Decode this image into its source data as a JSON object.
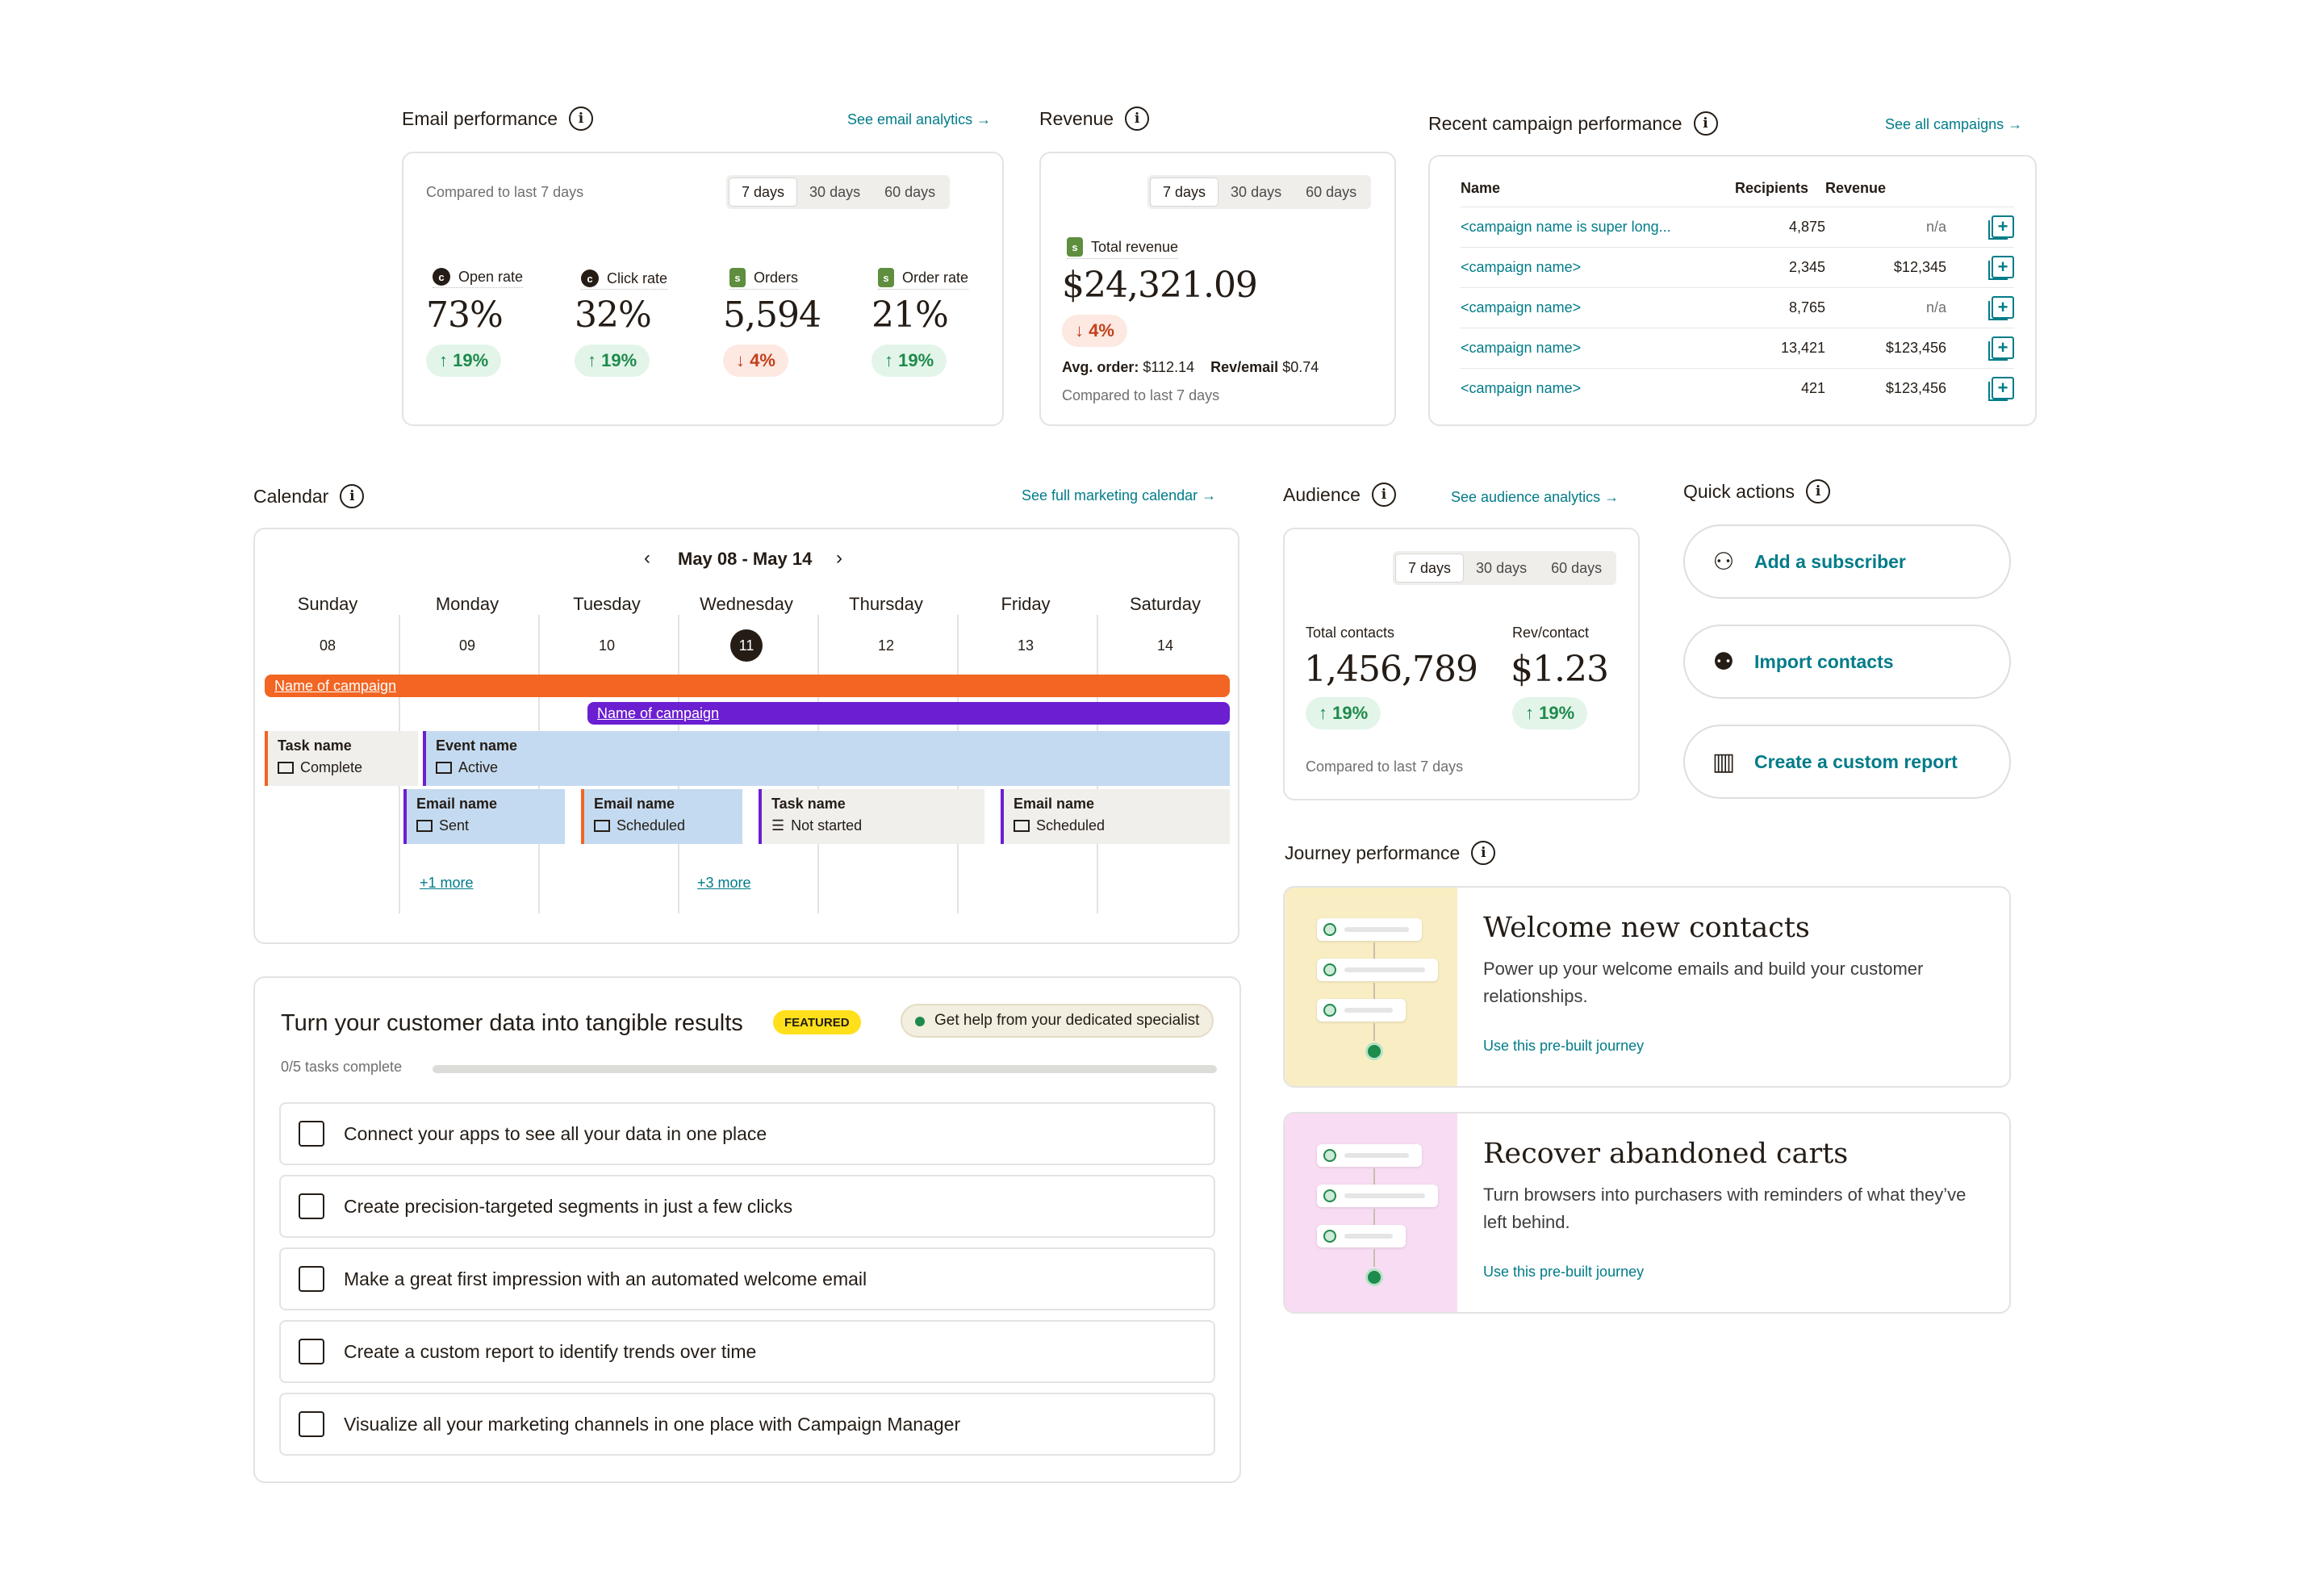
{
  "email": {
    "title": "Email performance",
    "link": "See email analytics →",
    "compared": "Compared to last 7 days",
    "ranges": [
      "7 days",
      "30 days",
      "60 days"
    ],
    "metrics": [
      {
        "label": "Open rate",
        "value": "73%",
        "change": "↑ 19%"
      },
      {
        "label": "Click rate",
        "value": "32%",
        "change": "↑ 19%"
      },
      {
        "label": "Orders",
        "value": "5,594",
        "change": "↓ 4%"
      },
      {
        "label": "Order rate",
        "value": "21%",
        "change": "↑ 19%"
      }
    ]
  },
  "revenue": {
    "title": "Revenue",
    "ranges": [
      "7 days",
      "30 days",
      "60 days"
    ],
    "label": "Total revenue",
    "value": "$24,321.09",
    "change": "↓ 4%",
    "avg_label": "Avg. order:",
    "avg_value": "$112.14",
    "rev_label": "Rev/email",
    "rev_value": "$0.74",
    "compared": "Compared to last 7 days"
  },
  "campaigns": {
    "title": "Recent campaign performance",
    "link": "See all campaigns →",
    "headers": [
      "Name",
      "Recipients",
      "Revenue"
    ],
    "rows": [
      {
        "name": "<campaign name is super long...",
        "recipients": "4,875",
        "revenue": "n/a"
      },
      {
        "name": "<campaign name>",
        "recipients": "2,345",
        "revenue": "$12,345"
      },
      {
        "name": "<campaign name>",
        "recipients": "8,765",
        "revenue": "n/a"
      },
      {
        "name": "<campaign name>",
        "recipients": "13,421",
        "revenue": "$123,456"
      },
      {
        "name": "<campaign name>",
        "recipients": "421",
        "revenue": "$123,456"
      }
    ]
  },
  "calendar": {
    "title": "Calendar",
    "link": "See full marketing calendar →",
    "range": "May 08 - May 14",
    "days": [
      {
        "name": "Sunday",
        "num": "08"
      },
      {
        "name": "Monday",
        "num": "09"
      },
      {
        "name": "Tuesday",
        "num": "10"
      },
      {
        "name": "Wednesday",
        "num": "11"
      },
      {
        "name": "Thursday",
        "num": "12"
      },
      {
        "name": "Friday",
        "num": "13"
      },
      {
        "name": "Saturday",
        "num": "14"
      }
    ],
    "bar1": "Name of campaign",
    "bar2": "Name of campaign",
    "events": [
      {
        "title": "Task name",
        "status": "Complete"
      },
      {
        "title": "Event name",
        "status": "Active"
      },
      {
        "title": "Email name",
        "status": "Sent"
      },
      {
        "title": "Email name",
        "status": "Scheduled"
      },
      {
        "title": "Task name",
        "status": "Not started"
      },
      {
        "title": "Email name",
        "status": "Scheduled"
      }
    ],
    "more1": "+1 more",
    "more2": "+3 more",
    "colors": {
      "orange": "#f26522",
      "purple": "#6b1fd1",
      "blue": "#c4daf0",
      "gray": "#f0efec"
    }
  },
  "audience": {
    "title": "Audience",
    "link": "See audience analytics →",
    "ranges": [
      "7 days",
      "30 days",
      "60 days"
    ],
    "contacts_label": "Total contacts",
    "contacts_value": "1,456,789",
    "contacts_change": "↑ 19%",
    "rev_label": "Rev/contact",
    "rev_value": "$1.23",
    "rev_change": "↑ 19%",
    "compared": "Compared to last 7 days"
  },
  "quick": {
    "title": "Quick actions",
    "actions": [
      "Add a subscriber",
      "Import contacts",
      "Create a custom report"
    ]
  },
  "tasks": {
    "title": "Turn your customer data into tangible results",
    "featured": "FEATURED",
    "help": "Get help from your dedicated specialist",
    "progress_text": "0/5 tasks complete",
    "progress": 0,
    "items": [
      "Connect your apps to see all your data in one place",
      "Create precision-targeted segments in just a few clicks",
      "Make a great first impression with an automated welcome email",
      "Create a custom report to identify trends over time",
      "Visualize all your marketing channels in one place with Campaign Manager"
    ]
  },
  "journey": {
    "title": "Journey performance",
    "cards": [
      {
        "title": "Welcome new contacts",
        "desc": "Power up your welcome emails and build your customer relationships.",
        "link": "Use this pre-built journey",
        "bg": "#f9edc4"
      },
      {
        "title": "Recover abandoned carts",
        "desc": "Turn browsers into purchasers with  reminders of what they’ve left behind.",
        "link": "Use this pre-built journey",
        "bg": "#f8dcf3"
      }
    ]
  }
}
